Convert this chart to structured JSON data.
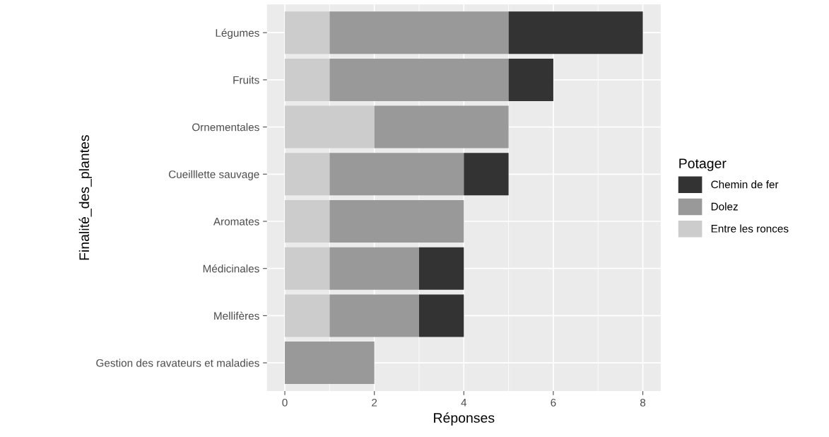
{
  "chart_data": {
    "type": "bar",
    "orientation": "horizontal",
    "stacked": true,
    "categories": [
      "Légumes",
      "Fruits",
      "Ornementales",
      "Cueilllette sauvage",
      "Aromates",
      "Médicinales",
      "Mellifères",
      "Gestion des ravateurs et maladies"
    ],
    "series": [
      {
        "name": "Entre les ronces",
        "color": "#cccccc",
        "values": [
          1,
          1,
          2,
          1,
          1,
          1,
          1,
          0
        ]
      },
      {
        "name": "Dolez",
        "color": "#999999",
        "values": [
          4,
          4,
          3,
          3,
          3,
          2,
          2,
          2
        ]
      },
      {
        "name": "Chemin de fer",
        "color": "#333333",
        "values": [
          3,
          1,
          0,
          1,
          0,
          1,
          1,
          0
        ]
      }
    ],
    "xlabel": "Réponses",
    "ylabel": "Finalité_des_plantes",
    "legend_title": "Potager",
    "xlim": [
      -0.4,
      8.4
    ],
    "xticks": [
      0,
      2,
      4,
      6,
      8
    ],
    "grid": true,
    "legend": "right"
  }
}
